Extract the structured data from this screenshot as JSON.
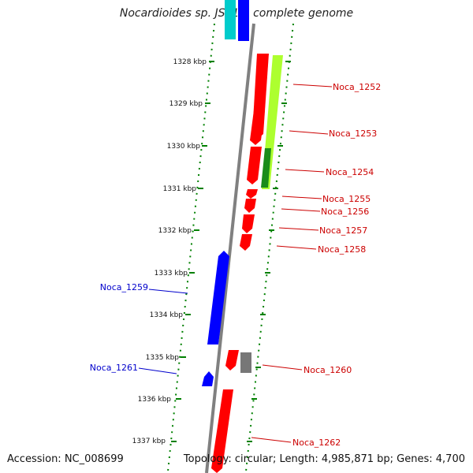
{
  "title": "Nocardioides sp. JS614, complete genome",
  "accession_text": "Accession: NC_008699",
  "summary_text": "Topology: circular; Length: 4,985,871 bp; Genes: 4,700",
  "colors": {
    "forward_gene": "#ff0000",
    "reverse_gene": "#0000ff",
    "backbone": "#808080",
    "ruler_dots": "#008000",
    "light_green": "#adff2f",
    "dark_green": "#1a8c1a",
    "cyan": "#00cccc",
    "gray_feature": "#777777",
    "red_label": "#cc0000",
    "blue_label": "#0000cc"
  },
  "scale_labels": [
    "1328 kbp",
    "1329 kbp",
    "1330 kbp",
    "1331 kbp",
    "1332 kbp",
    "1333 kbp",
    "1334 kbp",
    "1335 kbp",
    "1336 kbp",
    "1337 kbp"
  ],
  "gene_labels": [
    {
      "name": "Noca_1252",
      "strand": "forward"
    },
    {
      "name": "Noca_1253",
      "strand": "forward"
    },
    {
      "name": "Noca_1254",
      "strand": "forward"
    },
    {
      "name": "Noca_1255",
      "strand": "forward"
    },
    {
      "name": "Noca_1256",
      "strand": "forward"
    },
    {
      "name": "Noca_1257",
      "strand": "forward"
    },
    {
      "name": "Noca_1258",
      "strand": "forward"
    },
    {
      "name": "Noca_1259",
      "strand": "reverse"
    },
    {
      "name": "Noca_1260",
      "strand": "forward"
    },
    {
      "name": "Noca_1261",
      "strand": "reverse"
    },
    {
      "name": "Noca_1262",
      "strand": "forward"
    }
  ]
}
